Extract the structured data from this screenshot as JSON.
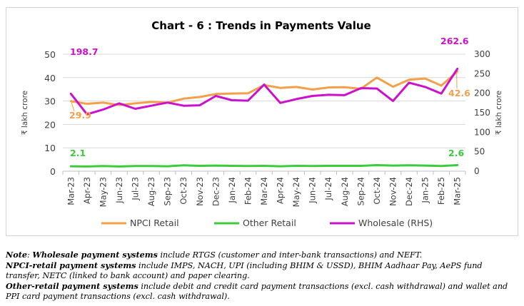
{
  "chart_data": {
    "type": "line",
    "title": "Chart - 6 : Trends in Payments Value",
    "ylabel_left": "₹ lakh crore",
    "ylabel_right": "₹ lakh crore",
    "ylim_left": [
      0,
      50
    ],
    "yticks_left": [
      0,
      10,
      20,
      30,
      40,
      50
    ],
    "ylim_right": [
      0,
      300
    ],
    "yticks_right": [
      0,
      50,
      100,
      150,
      200,
      250,
      300
    ],
    "grid": true,
    "legend_position": "bottom",
    "categories": [
      "Mar-23",
      "Apr-23",
      "May-23",
      "Jun-23",
      "Jul-23",
      "Aug-23",
      "Sep-23",
      "Oct-23",
      "Nov-23",
      "Dec-23",
      "Jan-24",
      "Feb-24",
      "Mar-24",
      "Apr-24",
      "May-24",
      "Jun-24",
      "Jul-24",
      "Aug-24",
      "Sep-24",
      "Oct-24",
      "Nov-24",
      "Dec-24",
      "Jan-25",
      "Feb-25",
      "Mar-25"
    ],
    "series": [
      {
        "name": "NPCI Retail",
        "axis": "left",
        "color": "#F4A04A",
        "values": [
          29.9,
          28.8,
          29.3,
          28.3,
          29.0,
          29.6,
          29.3,
          31.0,
          31.7,
          33.0,
          33.2,
          33.3,
          36.8,
          35.6,
          36.0,
          34.9,
          35.8,
          35.9,
          35.2,
          40.0,
          36.1,
          39.1,
          39.6,
          36.6,
          42.6
        ]
      },
      {
        "name": "Other Retail",
        "axis": "left",
        "color": "#3BCB3B",
        "values": [
          2.1,
          2.0,
          2.2,
          2.0,
          2.2,
          2.2,
          2.1,
          2.5,
          2.3,
          2.4,
          2.3,
          2.2,
          2.3,
          2.1,
          2.3,
          2.2,
          2.3,
          2.3,
          2.3,
          2.6,
          2.4,
          2.5,
          2.4,
          2.2,
          2.6
        ]
      },
      {
        "name": "Wholesale (RHS)",
        "axis": "right",
        "color": "#CC11CC",
        "values": [
          198.7,
          146.0,
          158.0,
          174.0,
          160.0,
          168.0,
          176.0,
          168.0,
          169.0,
          193.0,
          182.0,
          181.0,
          222.0,
          175.0,
          185.0,
          193.0,
          196.0,
          195.0,
          213.0,
          212.0,
          180.0,
          227.0,
          216.0,
          199.0,
          262.6
        ]
      }
    ],
    "data_labels": [
      {
        "series": 2,
        "index": 0,
        "text": "198.7"
      },
      {
        "series": 0,
        "index": 0,
        "text": "29.9"
      },
      {
        "series": 1,
        "index": 0,
        "text": "2.1"
      },
      {
        "series": 2,
        "index": 24,
        "text": "262.6"
      },
      {
        "series": 0,
        "index": 24,
        "text": "42.6"
      },
      {
        "series": 1,
        "index": 24,
        "text": "2.6"
      }
    ]
  },
  "notes": {
    "note_lead": "Note",
    "note_colon": ": ",
    "wholesale_term": "Wholesale payment systems",
    "wholesale_text": " include RTGS (customer and inter-bank transactions) and NEFT.",
    "npci_term": "NPCI-retail payment systems",
    "npci_text": " include IMPS, NACH, UPI (including BHIM & USSD), BHIM Aadhaar Pay, AePS fund transfer, NETC (linked to bank account) and paper clearing.",
    "other_term": "Other-retail payment systems",
    "other_text": " include debit and credit card payment transactions (excl. cash withdrawal) and wallet and PPI card payment transactions (excl. cash withdrawal)."
  }
}
